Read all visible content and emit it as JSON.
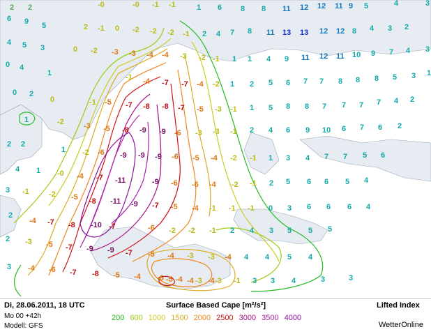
{
  "footer": {
    "datetime": "Di, 28.06.2011, 18 UTC",
    "run": "Mo 00 +42h",
    "model": "Modell: GFS",
    "title": "Surface Based Cape [m²/s²]",
    "product": "Lifted Index",
    "brand": "WetterOnline"
  },
  "legend": [
    {
      "value": "200",
      "color": "#22bb22"
    },
    {
      "value": "600",
      "color": "#99cc11"
    },
    {
      "value": "1000",
      "color": "#cccc22"
    },
    {
      "value": "1500",
      "color": "#ddaa22"
    },
    {
      "value": "2000",
      "color": "#ee8822"
    },
    {
      "value": "2500",
      "color": "#cc1111"
    },
    {
      "value": "3000",
      "color": "#aa1188"
    },
    {
      "value": "3500",
      "color": "#aa22aa"
    },
    {
      "value": "4000",
      "color": "#881199"
    }
  ],
  "lifted_index_labels": [
    {
      "t": "2",
      "c": "p"
    },
    {
      "t": "2",
      "c": "p"
    },
    {
      "t": "-0",
      "c": "y"
    },
    {
      "t": "-0",
      "c": "y"
    },
    {
      "t": "-1",
      "c": "y"
    },
    {
      "t": "-1",
      "c": "y"
    },
    {
      "t": "1",
      "c": "g"
    },
    {
      "t": "6",
      "c": "g"
    },
    {
      "t": "8",
      "c": "g"
    },
    {
      "t": "8",
      "c": "g"
    },
    {
      "t": "11",
      "c": "b"
    },
    {
      "t": "12",
      "c": "b"
    },
    {
      "t": "12",
      "c": "b"
    },
    {
      "t": "11",
      "c": "b"
    },
    {
      "t": "9",
      "c": "b"
    },
    {
      "t": "5",
      "c": "g"
    },
    {
      "t": "4",
      "c": "g"
    },
    {
      "t": "3",
      "c": "g"
    },
    {
      "t": "6",
      "c": "g"
    },
    {
      "t": "9",
      "c": "g"
    },
    {
      "t": "5",
      "c": "g"
    },
    {
      "t": "2",
      "c": "y"
    },
    {
      "t": "-1",
      "c": "y"
    },
    {
      "t": "0",
      "c": "y"
    },
    {
      "t": "-2",
      "c": "y"
    },
    {
      "t": "-2",
      "c": "y"
    },
    {
      "t": "-2",
      "c": "y"
    },
    {
      "t": "-1",
      "c": "y"
    },
    {
      "t": "2",
      "c": "g"
    },
    {
      "t": "4",
      "c": "g"
    },
    {
      "t": "7",
      "c": "g"
    },
    {
      "t": "8",
      "c": "g"
    },
    {
      "t": "11",
      "c": "b"
    },
    {
      "t": "13",
      "c": "d"
    },
    {
      "t": "13",
      "c": "d"
    },
    {
      "t": "12",
      "c": "b"
    },
    {
      "t": "12",
      "c": "b"
    },
    {
      "t": "8",
      "c": "g"
    },
    {
      "t": "4",
      "c": "g"
    },
    {
      "t": "3",
      "c": "g"
    },
    {
      "t": "2",
      "c": "g"
    },
    {
      "t": "4",
      "c": "g"
    },
    {
      "t": "5",
      "c": "g"
    },
    {
      "t": "3",
      "c": "g"
    },
    {
      "t": "0",
      "c": "y"
    },
    {
      "t": "-2",
      "c": "y"
    },
    {
      "t": "-3",
      "c": "o"
    },
    {
      "t": "-3",
      "c": "o"
    },
    {
      "t": "-4",
      "c": "o"
    },
    {
      "t": "-4",
      "c": "o"
    },
    {
      "t": "-3",
      "c": "y"
    },
    {
      "t": "-2",
      "c": "y"
    },
    {
      "t": "-1",
      "c": "y"
    },
    {
      "t": "1",
      "c": "g"
    },
    {
      "t": "1",
      "c": "g"
    },
    {
      "t": "4",
      "c": "g"
    },
    {
      "t": "9",
      "c": "g"
    },
    {
      "t": "11",
      "c": "b"
    },
    {
      "t": "12",
      "c": "b"
    },
    {
      "t": "11",
      "c": "b"
    },
    {
      "t": "10",
      "c": "g"
    },
    {
      "t": "9",
      "c": "g"
    },
    {
      "t": "7",
      "c": "g"
    },
    {
      "t": "4",
      "c": "g"
    },
    {
      "t": "3",
      "c": "g"
    },
    {
      "t": "0",
      "c": "g"
    },
    {
      "t": "4",
      "c": "g"
    },
    {
      "t": "1",
      "c": "g"
    },
    {
      "t": "-1",
      "c": "y"
    },
    {
      "t": "-4",
      "c": "o"
    },
    {
      "t": "-7",
      "c": "r"
    },
    {
      "t": "-7",
      "c": "r"
    },
    {
      "t": "-4",
      "c": "o"
    },
    {
      "t": "-2",
      "c": "y"
    },
    {
      "t": "1",
      "c": "g"
    },
    {
      "t": "2",
      "c": "g"
    },
    {
      "t": "5",
      "c": "g"
    },
    {
      "t": "6",
      "c": "g"
    },
    {
      "t": "7",
      "c": "g"
    },
    {
      "t": "7",
      "c": "g"
    },
    {
      "t": "8",
      "c": "g"
    },
    {
      "t": "8",
      "c": "g"
    },
    {
      "t": "8",
      "c": "g"
    },
    {
      "t": "5",
      "c": "g"
    },
    {
      "t": "3",
      "c": "g"
    },
    {
      "t": "1",
      "c": "g"
    },
    {
      "t": "0",
      "c": "g"
    },
    {
      "t": "2",
      "c": "g"
    },
    {
      "t": "0",
      "c": "y"
    },
    {
      "t": "-1",
      "c": "y"
    },
    {
      "t": "-5",
      "c": "o"
    },
    {
      "t": "-7",
      "c": "r"
    },
    {
      "t": "-8",
      "c": "r"
    },
    {
      "t": "-8",
      "c": "r"
    },
    {
      "t": "-7",
      "c": "r"
    },
    {
      "t": "-5",
      "c": "o"
    },
    {
      "t": "-3",
      "c": "y"
    },
    {
      "t": "-1",
      "c": "y"
    },
    {
      "t": "1",
      "c": "g"
    },
    {
      "t": "5",
      "c": "g"
    },
    {
      "t": "8",
      "c": "g"
    },
    {
      "t": "8",
      "c": "g"
    },
    {
      "t": "7",
      "c": "g"
    },
    {
      "t": "7",
      "c": "g"
    },
    {
      "t": "7",
      "c": "g"
    },
    {
      "t": "7",
      "c": "g"
    },
    {
      "t": "4",
      "c": "g"
    },
    {
      "t": "2",
      "c": "g"
    },
    {
      "t": "1",
      "c": "g"
    },
    {
      "t": "-2",
      "c": "y"
    },
    {
      "t": "-3",
      "c": "o"
    },
    {
      "t": "-5",
      "c": "o"
    },
    {
      "t": "-8",
      "c": "r"
    },
    {
      "t": "-9",
      "c": "m"
    },
    {
      "t": "-9",
      "c": "m"
    },
    {
      "t": "-6",
      "c": "o"
    },
    {
      "t": "-3",
      "c": "y"
    },
    {
      "t": "-3",
      "c": "y"
    },
    {
      "t": "-1",
      "c": "y"
    },
    {
      "t": "2",
      "c": "g"
    },
    {
      "t": "4",
      "c": "g"
    },
    {
      "t": "6",
      "c": "g"
    },
    {
      "t": "9",
      "c": "g"
    },
    {
      "t": "10",
      "c": "g"
    },
    {
      "t": "6",
      "c": "g"
    },
    {
      "t": "7",
      "c": "g"
    },
    {
      "t": "6",
      "c": "g"
    },
    {
      "t": "2",
      "c": "g"
    },
    {
      "t": "2",
      "c": "g"
    },
    {
      "t": "2",
      "c": "g"
    },
    {
      "t": "1",
      "c": "g"
    },
    {
      "t": "-2",
      "c": "y"
    },
    {
      "t": "-6",
      "c": "o"
    },
    {
      "t": "-9",
      "c": "m"
    },
    {
      "t": "-9",
      "c": "m"
    },
    {
      "t": "-9",
      "c": "m"
    },
    {
      "t": "-6",
      "c": "o"
    },
    {
      "t": "-5",
      "c": "o"
    },
    {
      "t": "-4",
      "c": "o"
    },
    {
      "t": "-2",
      "c": "y"
    },
    {
      "t": "-1",
      "c": "y"
    },
    {
      "t": "1",
      "c": "g"
    },
    {
      "t": "3",
      "c": "g"
    },
    {
      "t": "4",
      "c": "g"
    },
    {
      "t": "7",
      "c": "g"
    },
    {
      "t": "7",
      "c": "g"
    },
    {
      "t": "5",
      "c": "g"
    },
    {
      "t": "6",
      "c": "g"
    },
    {
      "t": "4",
      "c": "g"
    },
    {
      "t": "1",
      "c": "g"
    },
    {
      "t": "-0",
      "c": "y"
    },
    {
      "t": "-4",
      "c": "o"
    },
    {
      "t": "-7",
      "c": "r"
    },
    {
      "t": "-11",
      "c": "m"
    },
    {
      "t": "-9",
      "c": "m"
    },
    {
      "t": "-6",
      "c": "o"
    },
    {
      "t": "-6",
      "c": "o"
    },
    {
      "t": "-4",
      "c": "o"
    },
    {
      "t": "-2",
      "c": "y"
    },
    {
      "t": "-1",
      "c": "y"
    },
    {
      "t": "2",
      "c": "g"
    },
    {
      "t": "5",
      "c": "g"
    },
    {
      "t": "6",
      "c": "g"
    },
    {
      "t": "6",
      "c": "g"
    },
    {
      "t": "5",
      "c": "g"
    },
    {
      "t": "4",
      "c": "g"
    },
    {
      "t": "3",
      "c": "g"
    },
    {
      "t": "-1",
      "c": "y"
    },
    {
      "t": "-2",
      "c": "y"
    },
    {
      "t": "-5",
      "c": "o"
    },
    {
      "t": "-8",
      "c": "r"
    },
    {
      "t": "-11",
      "c": "m"
    },
    {
      "t": "-9",
      "c": "m"
    },
    {
      "t": "-7",
      "c": "r"
    },
    {
      "t": "-5",
      "c": "o"
    },
    {
      "t": "-4",
      "c": "o"
    },
    {
      "t": "-1",
      "c": "y"
    },
    {
      "t": "-1",
      "c": "y"
    },
    {
      "t": "-1",
      "c": "y"
    },
    {
      "t": "0",
      "c": "g"
    },
    {
      "t": "3",
      "c": "g"
    },
    {
      "t": "6",
      "c": "g"
    },
    {
      "t": "6",
      "c": "g"
    },
    {
      "t": "6",
      "c": "g"
    },
    {
      "t": "4",
      "c": "g"
    },
    {
      "t": "2",
      "c": "g"
    },
    {
      "t": "-4",
      "c": "o"
    },
    {
      "t": "-7",
      "c": "r"
    },
    {
      "t": "-8",
      "c": "r"
    },
    {
      "t": "-10",
      "c": "m"
    },
    {
      "t": "-7",
      "c": "r"
    },
    {
      "t": "-6",
      "c": "o"
    },
    {
      "t": "-2",
      "c": "y"
    },
    {
      "t": "-2",
      "c": "y"
    },
    {
      "t": "-1",
      "c": "y"
    },
    {
      "t": "2",
      "c": "g"
    },
    {
      "t": "4",
      "c": "g"
    },
    {
      "t": "3",
      "c": "g"
    },
    {
      "t": "5",
      "c": "g"
    },
    {
      "t": "5",
      "c": "g"
    },
    {
      "t": "5",
      "c": "g"
    },
    {
      "t": "2",
      "c": "g"
    },
    {
      "t": "-3",
      "c": "y"
    },
    {
      "t": "-5",
      "c": "o"
    },
    {
      "t": "-7",
      "c": "r"
    },
    {
      "t": "-9",
      "c": "m"
    },
    {
      "t": "-9",
      "c": "m"
    },
    {
      "t": "-7",
      "c": "r"
    },
    {
      "t": "-5",
      "c": "o"
    },
    {
      "t": "-4",
      "c": "o"
    },
    {
      "t": "-3",
      "c": "y"
    },
    {
      "t": "-3",
      "c": "y"
    },
    {
      "t": "-4",
      "c": "o"
    },
    {
      "t": "4",
      "c": "g"
    },
    {
      "t": "4",
      "c": "g"
    },
    {
      "t": "5",
      "c": "g"
    },
    {
      "t": "4",
      "c": "g"
    },
    {
      "t": "3",
      "c": "g"
    },
    {
      "t": "-4",
      "c": "o"
    },
    {
      "t": "-6",
      "c": "o"
    },
    {
      "t": "-7",
      "c": "r"
    },
    {
      "t": "-8",
      "c": "r"
    },
    {
      "t": "-5",
      "c": "o"
    },
    {
      "t": "-4",
      "c": "o"
    },
    {
      "t": "-6",
      "c": "o"
    },
    {
      "t": "-4",
      "c": "o"
    },
    {
      "t": "-3",
      "c": "y"
    },
    {
      "t": "-3",
      "c": "y"
    },
    {
      "t": "-1",
      "c": "y"
    },
    {
      "t": "3",
      "c": "g"
    },
    {
      "t": "3",
      "c": "g"
    },
    {
      "t": "4",
      "c": "g"
    },
    {
      "t": "3",
      "c": "g"
    },
    {
      "t": "3",
      "c": "g"
    },
    {
      "t": "-5",
      "c": "o"
    },
    {
      "t": "-4",
      "c": "o"
    },
    {
      "t": "-4",
      "c": "o"
    },
    {
      "t": "-3",
      "c": "y"
    },
    {
      "t": "-2",
      "c": "y"
    },
    {
      "t": "-4",
      "c": "o"
    },
    {
      "t": "-8",
      "c": "r"
    },
    {
      "t": "-6",
      "c": "o"
    },
    {
      "t": "-4",
      "c": "o"
    },
    {
      "t": "-2",
      "c": "y"
    },
    {
      "t": "0",
      "c": "g"
    },
    {
      "t": "2",
      "c": "g"
    },
    {
      "t": "2",
      "c": "g"
    },
    {
      "t": "1",
      "c": "g"
    },
    {
      "t": "1",
      "c": "g"
    },
    {
      "t": "4",
      "c": "g"
    },
    {
      "t": "3",
      "c": "g"
    },
    {
      "t": "-8",
      "c": "r"
    },
    {
      "t": "-6",
      "c": "o"
    },
    {
      "t": "-4",
      "c": "o"
    }
  ]
}
